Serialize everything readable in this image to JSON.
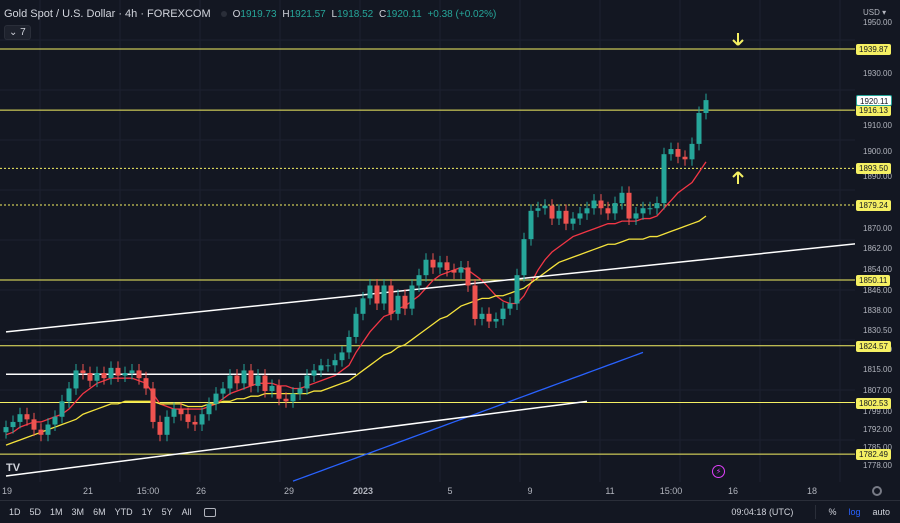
{
  "header": {
    "symbol": "Gold Spot / U.S. Dollar · 4h · FOREXCOM",
    "o_label": "O",
    "o": "1919.73",
    "h_label": "H",
    "h": "1921.57",
    "l_label": "L",
    "l": "1918.52",
    "c_label": "C",
    "c": "1920.11",
    "change": "+0.38 (+0.02%)",
    "indicators_toggle": "⌄ 7"
  },
  "price_axis": {
    "currency": "USD ▾",
    "ticks": [
      "1950.00",
      "1930.00",
      "1910.00",
      "1900.00",
      "1890.00",
      "1870.00",
      "1862.00",
      "1854.00",
      "1846.00",
      "1838.00",
      "1830.50",
      "1823.00",
      "1815.00",
      "1807.00",
      "1799.00",
      "1792.00",
      "1785.00",
      "1778.00"
    ],
    "levels": [
      "1939.87",
      "1916.13",
      "1893.50",
      "1879.24",
      "1850.11",
      "1824.57",
      "1802.53",
      "1782.49"
    ],
    "current_price": "1920.11"
  },
  "time_axis": {
    "ticks": [
      "19",
      "21",
      "15:00",
      "26",
      "29",
      "2023",
      "5",
      "9",
      "11",
      "15:00",
      "16",
      "18"
    ]
  },
  "bottom_bar": {
    "ranges": [
      "1D",
      "5D",
      "1M",
      "3M",
      "6M",
      "YTD",
      "1Y",
      "5Y",
      "All"
    ],
    "clock": "09:04:18 (UTC)",
    "percent": "%",
    "log": "log",
    "auto": "auto"
  },
  "icons": {
    "logo": "tradingview-logo-icon",
    "flash": "flash-icon",
    "gear": "gear-icon",
    "arrow_down": "arrow-down-icon",
    "arrow_up": "arrow-up-icon"
  },
  "colors": {
    "up": "#26a69a",
    "down": "#ef5350",
    "level": "#f5f063",
    "trendline": "#ffffff",
    "ma_fast": "#f23645",
    "ma_mid": "#f5e33c",
    "ma_slow": "#2962ff"
  },
  "chart_data": {
    "type": "candlestick",
    "symbol": "Gold Spot / U.S. Dollar",
    "interval": "4h",
    "ylim": [
      1774,
      1955
    ],
    "horizontal_levels": [
      1939.87,
      1916.13,
      1893.5,
      1879.24,
      1850.11,
      1824.57,
      1802.53,
      1782.49
    ],
    "closes": [
      1793,
      1795,
      1798,
      1796,
      1792,
      1790,
      1794,
      1797,
      1803,
      1808,
      1815,
      1814,
      1811,
      1814,
      1812,
      1816,
      1813,
      1814,
      1815,
      1812,
      1808,
      1795,
      1790,
      1797,
      1800,
      1798,
      1795,
      1794,
      1798,
      1802,
      1806,
      1808,
      1813,
      1810,
      1815,
      1809,
      1813,
      1807,
      1809,
      1804,
      1803,
      1806,
      1808,
      1813,
      1815,
      1817,
      1817,
      1819,
      1822,
      1828,
      1837,
      1843,
      1848,
      1841,
      1848,
      1837,
      1844,
      1839,
      1848,
      1852,
      1858,
      1855,
      1857,
      1854,
      1853,
      1855,
      1848,
      1835,
      1837,
      1834,
      1835,
      1839,
      1841,
      1852,
      1866,
      1877,
      1878,
      1879,
      1874,
      1877,
      1872,
      1874,
      1876,
      1878,
      1881,
      1878,
      1876,
      1880,
      1884,
      1874,
      1876,
      1878,
      1878,
      1880,
      1899,
      1901,
      1898,
      1897,
      1903,
      1915,
      1920
    ],
    "moving_averages": [
      {
        "name": "MA fast",
        "values": [
          1790,
          1791,
          1793,
          1794,
          1795,
          1795,
          1796,
          1797,
          1798,
          1800,
          1803,
          1806,
          1808,
          1810,
          1811,
          1812,
          1812,
          1812,
          1812,
          1811,
          1810,
          1806,
          1802,
          1801,
          1800,
          1800,
          1800,
          1800,
          1800,
          1801,
          1802,
          1804,
          1806,
          1807,
          1808,
          1809,
          1810,
          1810,
          1810,
          1809,
          1809,
          1808,
          1808,
          1809,
          1810,
          1811,
          1812,
          1813,
          1815,
          1817,
          1822,
          1826,
          1830,
          1833,
          1836,
          1837,
          1839,
          1840,
          1842,
          1844,
          1847,
          1850,
          1852,
          1853,
          1854,
          1855,
          1854,
          1852,
          1850,
          1847,
          1844,
          1842,
          1841,
          1841,
          1844,
          1849,
          1854,
          1858,
          1861,
          1863,
          1865,
          1867,
          1868,
          1869,
          1870,
          1871,
          1872,
          1872,
          1873,
          1873,
          1873,
          1874,
          1874,
          1875,
          1878,
          1881,
          1884,
          1886,
          1888,
          1892,
          1896
        ]
      },
      {
        "name": "MA mid",
        "values": [
          1786,
          1787,
          1788,
          1789,
          1790,
          1791,
          1792,
          1793,
          1794,
          1795,
          1796,
          1798,
          1799,
          1800,
          1801,
          1802,
          1802,
          1803,
          1803,
          1803,
          1803,
          1803,
          1802,
          1802,
          1802,
          1802,
          1801,
          1801,
          1801,
          1802,
          1802,
          1803,
          1803,
          1804,
          1804,
          1805,
          1805,
          1806,
          1806,
          1806,
          1806,
          1806,
          1806,
          1806,
          1807,
          1807,
          1808,
          1809,
          1810,
          1811,
          1813,
          1815,
          1817,
          1819,
          1821,
          1822,
          1824,
          1825,
          1827,
          1829,
          1831,
          1833,
          1835,
          1836,
          1838,
          1840,
          1841,
          1842,
          1843,
          1843,
          1844,
          1844,
          1845,
          1846,
          1847,
          1849,
          1851,
          1853,
          1855,
          1857,
          1858,
          1859,
          1860,
          1861,
          1862,
          1863,
          1864,
          1864,
          1865,
          1866,
          1866,
          1866,
          1867,
          1867,
          1868,
          1869,
          1870,
          1871,
          1872,
          1873,
          1875
        ]
      },
      {
        "name": "MA slow",
        "values": [
          1772,
          1773,
          1774,
          1775,
          1776,
          1777,
          1778,
          1779,
          1780,
          1781,
          1782,
          1783,
          1784,
          1785,
          1786,
          1787,
          1788,
          1789,
          1790,
          1791,
          1792,
          1793,
          1794,
          1795,
          1796,
          1797,
          1798,
          1799,
          1800,
          1801,
          1802,
          1803,
          1804,
          1805,
          1806,
          1807,
          1808,
          1809,
          1810,
          1811,
          1812,
          1813,
          1814,
          1815,
          1816,
          1817,
          1818,
          1819,
          1820,
          1821,
          1822
        ]
      }
    ],
    "trendlines": [
      {
        "from": [
          0,
          1830
        ],
        "to": [
          135,
          1868
        ]
      },
      {
        "from": [
          0,
          1774
        ],
        "to": [
          83,
          1803
        ]
      },
      {
        "from": [
          0,
          1813.5
        ],
        "to": [
          50,
          1813.5
        ]
      }
    ]
  }
}
